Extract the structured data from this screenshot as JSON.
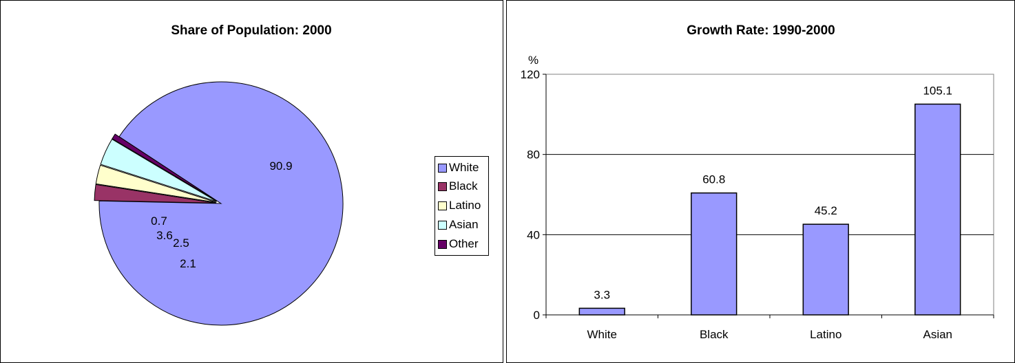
{
  "chart_data": [
    {
      "type": "pie",
      "title": "Share of Population:  2000",
      "categories": [
        "White",
        "Black",
        "Latino",
        "Asian",
        "Other"
      ],
      "values": [
        90.9,
        2.1,
        2.5,
        3.6,
        0.7
      ],
      "data_labels": [
        "90.9",
        "2.1",
        "2.5",
        "3.6",
        "0.7"
      ],
      "exploded": [
        "Black",
        "Latino",
        "Asian",
        "Other"
      ],
      "colors": [
        "#9999ff",
        "#993366",
        "#ffffcc",
        "#ccffff",
        "#660066"
      ],
      "legend": {
        "position": "right",
        "entries": [
          "White",
          "Black",
          "Latino",
          "Asian",
          "Other"
        ]
      }
    },
    {
      "type": "bar",
      "title": "Growth Rate:  1990-2000",
      "categories": [
        "White",
        "Black",
        "Latino",
        "Asian"
      ],
      "values": [
        3.3,
        60.8,
        45.2,
        105.1
      ],
      "data_labels": [
        "3.3",
        "60.8",
        "45.2",
        "105.1"
      ],
      "ylabel": "%",
      "xlabel": "",
      "ylim": [
        0,
        120
      ],
      "yticks": [
        "0",
        "40",
        "80",
        "120"
      ],
      "grid": true,
      "bar_color": "#9999ff"
    }
  ]
}
